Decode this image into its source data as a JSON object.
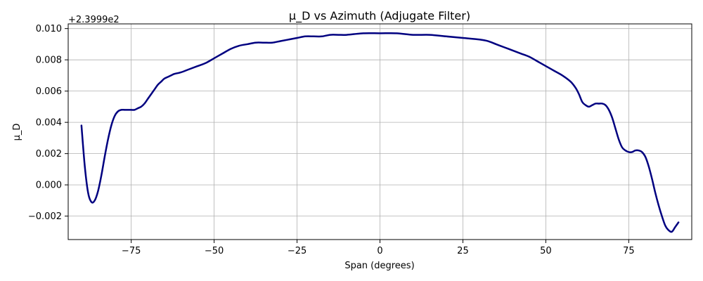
{
  "chart_data": {
    "type": "line",
    "title": "μ_D vs Azimuth (Adjugate Filter)",
    "xlabel": "Span (degrees)",
    "ylabel": "μ_D",
    "y_offset_label": "+2.3999e2",
    "xlim": [
      -94,
      94
    ],
    "ylim": [
      -0.0035,
      0.0103
    ],
    "x_ticks": [
      -75,
      -50,
      -25,
      0,
      25,
      50,
      75
    ],
    "x_tick_labels": [
      "−75",
      "−50",
      "−25",
      "0",
      "25",
      "50",
      "75"
    ],
    "y_ticks": [
      -0.002,
      0,
      0.002,
      0.004,
      0.006,
      0.008,
      0.01
    ],
    "y_tick_labels": [
      "−0.002",
      "0.000",
      "0.002",
      "0.004",
      "0.006",
      "0.008",
      "0.010"
    ],
    "grid": true,
    "line_color": "#000080",
    "series": [
      {
        "x": [
          -90,
          -89,
          -88,
          -87,
          -86,
          -85,
          -84,
          -83,
          -82,
          -81,
          -80,
          -79,
          -78,
          -77,
          -76,
          -75,
          -74,
          -73,
          -72,
          -71,
          -70,
          -69,
          -68,
          -67,
          -66,
          -65,
          -64,
          -63,
          -62,
          -60,
          -57.5,
          -55,
          -52.5,
          -50,
          -47.5,
          -45,
          -42.5,
          -40,
          -37.5,
          -35,
          -32.5,
          -30,
          -27.5,
          -25,
          -22.5,
          -20,
          -17.5,
          -15,
          -12.5,
          -10,
          -5,
          0,
          5,
          10,
          15,
          20,
          25,
          30,
          32.5,
          35,
          37.5,
          40,
          42.5,
          45,
          47.5,
          50,
          52.5,
          55,
          57.5,
          59,
          60,
          61,
          62,
          63,
          64,
          65,
          66,
          67,
          68,
          69,
          70,
          71,
          72,
          73,
          74,
          75,
          76,
          77,
          78,
          79,
          80,
          81,
          82,
          83,
          84,
          85,
          86,
          87,
          88,
          89,
          90
        ],
        "y": [
          0.0038,
          0.0012,
          -0.0005,
          -0.0011,
          -0.001,
          -0.0004,
          0.0006,
          0.0018,
          0.0029,
          0.0038,
          0.0044,
          0.0047,
          0.0048,
          0.0048,
          0.0048,
          0.0048,
          0.0048,
          0.0049,
          0.005,
          0.0052,
          0.0055,
          0.0058,
          0.0061,
          0.0064,
          0.0066,
          0.0068,
          0.0069,
          0.007,
          0.0071,
          0.0072,
          0.0074,
          0.0076,
          0.0078,
          0.0081,
          0.0084,
          0.0087,
          0.0089,
          0.009,
          0.0091,
          0.0091,
          0.0091,
          0.0092,
          0.0093,
          0.0094,
          0.0095,
          0.0095,
          0.0095,
          0.0096,
          0.0096,
          0.0096,
          0.0097,
          0.0097,
          0.0097,
          0.0096,
          0.0096,
          0.0095,
          0.0094,
          0.0093,
          0.0092,
          0.009,
          0.0088,
          0.0086,
          0.0084,
          0.0082,
          0.0079,
          0.0076,
          0.0073,
          0.007,
          0.0066,
          0.0062,
          0.0058,
          0.0053,
          0.0051,
          0.005,
          0.0051,
          0.0052,
          0.0052,
          0.0052,
          0.0051,
          0.0048,
          0.0043,
          0.0036,
          0.0029,
          0.0024,
          0.0022,
          0.0021,
          0.0021,
          0.0022,
          0.0022,
          0.0021,
          0.0018,
          0.0012,
          0.0004,
          -0.0005,
          -0.0013,
          -0.002,
          -0.0026,
          -0.0029,
          -0.003,
          -0.0027,
          -0.0024
        ]
      }
    ]
  }
}
